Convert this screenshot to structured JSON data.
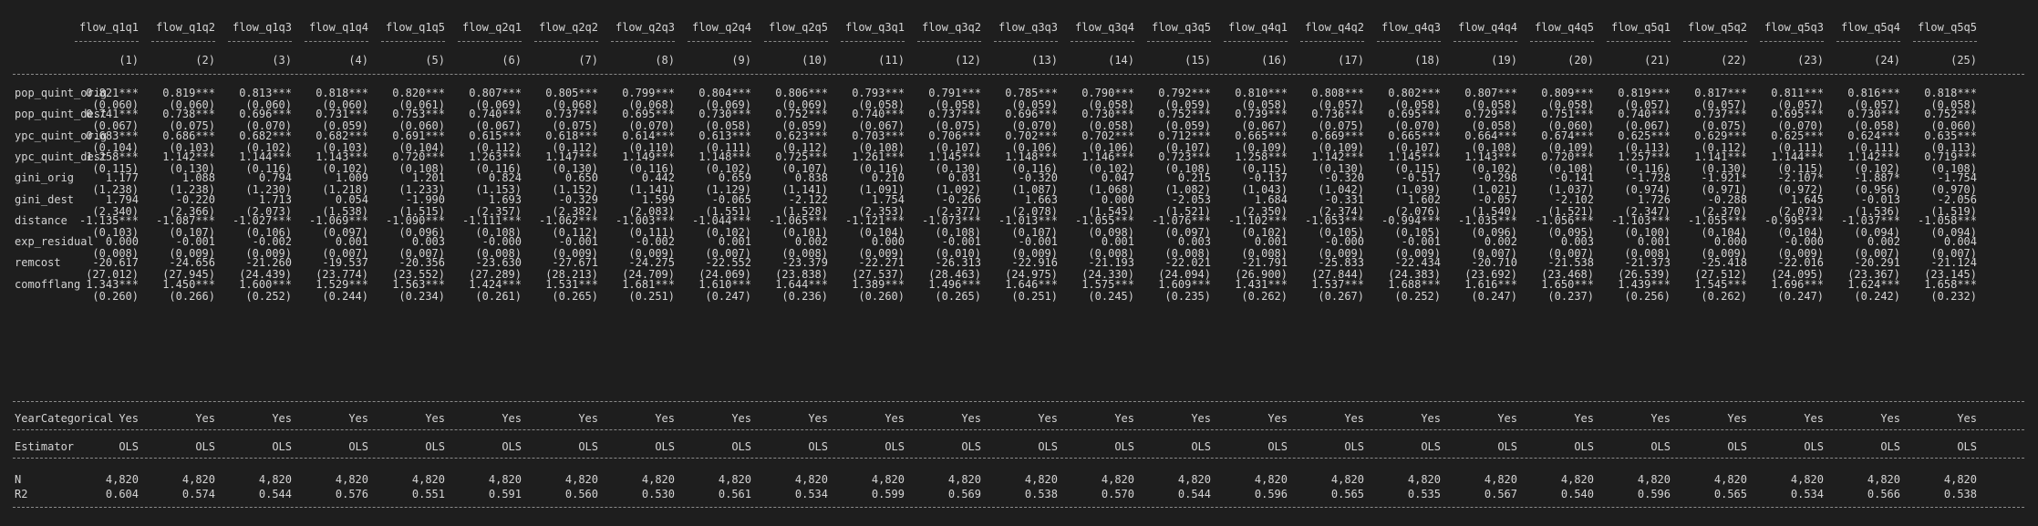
{
  "columns": [
    {
      "name": "flow_q1q1",
      "num": "(1)"
    },
    {
      "name": "flow_q1q2",
      "num": "(2)"
    },
    {
      "name": "flow_q1q3",
      "num": "(3)"
    },
    {
      "name": "flow_q1q4",
      "num": "(4)"
    },
    {
      "name": "flow_q1q5",
      "num": "(5)"
    },
    {
      "name": "flow_q2q1",
      "num": "(6)"
    },
    {
      "name": "flow_q2q2",
      "num": "(7)"
    },
    {
      "name": "flow_q2q3",
      "num": "(8)"
    },
    {
      "name": "flow_q2q4",
      "num": "(9)"
    },
    {
      "name": "flow_q2q5",
      "num": "(10)"
    },
    {
      "name": "flow_q3q1",
      "num": "(11)"
    },
    {
      "name": "flow_q3q2",
      "num": "(12)"
    },
    {
      "name": "flow_q3q3",
      "num": "(13)"
    },
    {
      "name": "flow_q3q4",
      "num": "(14)"
    },
    {
      "name": "flow_q3q5",
      "num": "(15)"
    },
    {
      "name": "flow_q4q1",
      "num": "(16)"
    },
    {
      "name": "flow_q4q2",
      "num": "(17)"
    },
    {
      "name": "flow_q4q3",
      "num": "(18)"
    },
    {
      "name": "flow_q4q4",
      "num": "(19)"
    },
    {
      "name": "flow_q4q5",
      "num": "(20)"
    },
    {
      "name": "flow_q5q1",
      "num": "(21)"
    },
    {
      "name": "flow_q5q2",
      "num": "(22)"
    },
    {
      "name": "flow_q5q3",
      "num": "(23)"
    },
    {
      "name": "flow_q5q4",
      "num": "(24)"
    },
    {
      "name": "flow_q5q5",
      "num": "(25)"
    }
  ],
  "coef_rows": [
    {
      "label": "pop_quint_orig",
      "coef": [
        "0.821***",
        "0.819***",
        "0.813***",
        "0.818***",
        "0.820***",
        "0.807***",
        "0.805***",
        "0.799***",
        "0.804***",
        "0.806***",
        "0.793***",
        "0.791***",
        "0.785***",
        "0.790***",
        "0.792***",
        "0.810***",
        "0.808***",
        "0.802***",
        "0.807***",
        "0.809***",
        "0.819***",
        "0.817***",
        "0.811***",
        "0.816***",
        "0.818***"
      ],
      "se": [
        "(0.060)",
        "(0.060)",
        "(0.060)",
        "(0.060)",
        "(0.061)",
        "(0.069)",
        "(0.068)",
        "(0.068)",
        "(0.069)",
        "(0.069)",
        "(0.058)",
        "(0.058)",
        "(0.059)",
        "(0.058)",
        "(0.059)",
        "(0.058)",
        "(0.057)",
        "(0.058)",
        "(0.058)",
        "(0.058)",
        "(0.057)",
        "(0.057)",
        "(0.057)",
        "(0.057)",
        "(0.058)"
      ]
    },
    {
      "label": "pop_quint_dest",
      "coef": [
        "0.741***",
        "0.738***",
        "0.696***",
        "0.731***",
        "0.753***",
        "0.740***",
        "0.737***",
        "0.695***",
        "0.730***",
        "0.752***",
        "0.740***",
        "0.737***",
        "0.696***",
        "0.730***",
        "0.752***",
        "0.739***",
        "0.736***",
        "0.695***",
        "0.729***",
        "0.751***",
        "0.740***",
        "0.737***",
        "0.695***",
        "0.730***",
        "0.752***"
      ],
      "se": [
        "(0.067)",
        "(0.075)",
        "(0.070)",
        "(0.059)",
        "(0.060)",
        "(0.067)",
        "(0.075)",
        "(0.070)",
        "(0.058)",
        "(0.059)",
        "(0.067)",
        "(0.075)",
        "(0.070)",
        "(0.058)",
        "(0.059)",
        "(0.067)",
        "(0.075)",
        "(0.070)",
        "(0.058)",
        "(0.060)",
        "(0.067)",
        "(0.075)",
        "(0.070)",
        "(0.058)",
        "(0.060)"
      ]
    },
    {
      "label": "ypc_quint_orig",
      "coef": [
        "0.683***",
        "0.686***",
        "0.682***",
        "0.682***",
        "0.691***",
        "0.615***",
        "0.618***",
        "0.614***",
        "0.613***",
        "0.623***",
        "0.703***",
        "0.706***",
        "0.702***",
        "0.702***",
        "0.712***",
        "0.665***",
        "0.669***",
        "0.665***",
        "0.664***",
        "0.674***",
        "0.625***",
        "0.629***",
        "0.625***",
        "0.624***",
        "0.635***"
      ],
      "se": [
        "(0.104)",
        "(0.103)",
        "(0.102)",
        "(0.103)",
        "(0.104)",
        "(0.112)",
        "(0.112)",
        "(0.110)",
        "(0.111)",
        "(0.112)",
        "(0.108)",
        "(0.107)",
        "(0.106)",
        "(0.106)",
        "(0.107)",
        "(0.109)",
        "(0.109)",
        "(0.107)",
        "(0.108)",
        "(0.109)",
        "(0.113)",
        "(0.112)",
        "(0.111)",
        "(0.111)",
        "(0.113)"
      ]
    },
    {
      "label": "ypc_quint_dest",
      "coef": [
        "1.258***",
        "1.142***",
        "1.144***",
        "1.143***",
        "0.720***",
        "1.263***",
        "1.147***",
        "1.149***",
        "1.148***",
        "0.725***",
        "1.261***",
        "1.145***",
        "1.148***",
        "1.146***",
        "0.723***",
        "1.258***",
        "1.142***",
        "1.145***",
        "1.143***",
        "0.720***",
        "1.257***",
        "1.141***",
        "1.144***",
        "1.142***",
        "0.719***"
      ],
      "se": [
        "(0.115)",
        "(0.130)",
        "(0.116)",
        "(0.102)",
        "(0.108)",
        "(0.116)",
        "(0.130)",
        "(0.116)",
        "(0.102)",
        "(0.107)",
        "(0.116)",
        "(0.130)",
        "(0.116)",
        "(0.102)",
        "(0.108)",
        "(0.115)",
        "(0.130)",
        "(0.115)",
        "(0.102)",
        "(0.108)",
        "(0.116)",
        "(0.130)",
        "(0.115)",
        "(0.102)",
        "(0.108)"
      ]
    },
    {
      "label": "gini_orig",
      "coef": [
        "1.177",
        "1.088",
        "0.794",
        "1.009",
        "1.201",
        "0.824",
        "0.650",
        "0.442",
        "0.659",
        "0.838",
        "0.210",
        "0.031",
        "-0.320",
        "0.047",
        "0.215",
        "-0.137",
        "-0.320",
        "-0.517",
        "-0.298",
        "-0.141",
        "-1.728",
        "-1.921*",
        "-2.107*",
        "-1.887*",
        "-1.754"
      ],
      "se": [
        "(1.238)",
        "(1.238)",
        "(1.230)",
        "(1.218)",
        "(1.233)",
        "(1.153)",
        "(1.152)",
        "(1.141)",
        "(1.129)",
        "(1.141)",
        "(1.091)",
        "(1.092)",
        "(1.087)",
        "(1.068)",
        "(1.082)",
        "(1.043)",
        "(1.042)",
        "(1.039)",
        "(1.021)",
        "(1.037)",
        "(0.974)",
        "(0.971)",
        "(0.972)",
        "(0.956)",
        "(0.970)"
      ]
    },
    {
      "label": "gini_dest",
      "coef": [
        "1.794",
        "-0.220",
        "1.713",
        "0.054",
        "-1.990",
        "1.693",
        "-0.329",
        "1.599",
        "-0.065",
        "-2.122",
        "1.754",
        "-0.266",
        "1.663",
        "0.000",
        "-2.053",
        "1.684",
        "-0.331",
        "1.602",
        "-0.057",
        "-2.102",
        "1.726",
        "-0.288",
        "1.645",
        "-0.013",
        "-2.056"
      ],
      "se": [
        "(2.340)",
        "(2.366)",
        "(2.073)",
        "(1.538)",
        "(1.515)",
        "(2.357)",
        "(2.382)",
        "(2.083)",
        "(1.551)",
        "(1.528)",
        "(2.353)",
        "(2.377)",
        "(2.078)",
        "(1.545)",
        "(1.521)",
        "(2.350)",
        "(2.374)",
        "(2.076)",
        "(1.540)",
        "(1.521)",
        "(2.347)",
        "(2.370)",
        "(2.073)",
        "(1.536)",
        "(1.519)"
      ]
    },
    {
      "label": "distance",
      "coef": [
        "-1.135***",
        "-1.087***",
        "-1.027***",
        "-1.069***",
        "-1.090***",
        "-1.111***",
        "-1.062***",
        "-1.003***",
        "-1.044***",
        "-1.065***",
        "-1.121***",
        "-1.073***",
        "-1.013***",
        "-1.055***",
        "-1.076***",
        "-1.102***",
        "-1.053***",
        "-0.994***",
        "-1.035***",
        "-1.056***",
        "-1.103***",
        "-1.055***",
        "-0.995***",
        "-1.037***",
        "-1.058***"
      ],
      "se": [
        "(0.103)",
        "(0.107)",
        "(0.106)",
        "(0.097)",
        "(0.096)",
        "(0.108)",
        "(0.112)",
        "(0.111)",
        "(0.102)",
        "(0.101)",
        "(0.104)",
        "(0.108)",
        "(0.107)",
        "(0.098)",
        "(0.097)",
        "(0.102)",
        "(0.105)",
        "(0.105)",
        "(0.096)",
        "(0.095)",
        "(0.100)",
        "(0.104)",
        "(0.104)",
        "(0.094)",
        "(0.094)"
      ]
    },
    {
      "label": "exp_residual",
      "coef": [
        "0.000",
        "-0.001",
        "-0.002",
        "0.001",
        "0.003",
        "-0.000",
        "-0.001",
        "-0.002",
        "0.001",
        "0.002",
        "0.000",
        "-0.001",
        "-0.001",
        "0.001",
        "0.003",
        "0.001",
        "-0.000",
        "-0.001",
        "0.002",
        "0.003",
        "0.001",
        "0.000",
        "-0.000",
        "0.002",
        "0.004"
      ],
      "se": [
        "(0.008)",
        "(0.009)",
        "(0.009)",
        "(0.007)",
        "(0.007)",
        "(0.008)",
        "(0.009)",
        "(0.009)",
        "(0.007)",
        "(0.008)",
        "(0.009)",
        "(0.010)",
        "(0.009)",
        "(0.008)",
        "(0.008)",
        "(0.008)",
        "(0.009)",
        "(0.009)",
        "(0.007)",
        "(0.007)",
        "(0.008)",
        "(0.009)",
        "(0.009)",
        "(0.007)",
        "(0.007)"
      ]
    },
    {
      "label": "remcost",
      "coef": [
        "-20.617",
        "-24.656",
        "-21.260",
        "-19.537",
        "-20.356",
        "-23.630",
        "-27.671",
        "-24.275",
        "-22.552",
        "-23.379",
        "-22.271",
        "-26.313",
        "-22.916",
        "-21.193",
        "-22.021",
        "-21.791",
        "-25.833",
        "-22.434",
        "-20.710",
        "-21.538",
        "-21.373",
        "-25.418",
        "-22.016",
        "-20.291",
        "-21.124"
      ],
      "se": [
        "(27.012)",
        "(27.945)",
        "(24.439)",
        "(23.774)",
        "(23.552)",
        "(27.289)",
        "(28.213)",
        "(24.709)",
        "(24.069)",
        "(23.838)",
        "(27.537)",
        "(28.463)",
        "(24.975)",
        "(24.330)",
        "(24.094)",
        "(26.900)",
        "(27.844)",
        "(24.383)",
        "(23.692)",
        "(23.468)",
        "(26.539)",
        "(27.512)",
        "(24.095)",
        "(23.367)",
        "(23.145)"
      ]
    },
    {
      "label": "comofflang",
      "coef": [
        "1.343***",
        "1.450***",
        "1.600***",
        "1.529***",
        "1.563***",
        "1.424***",
        "1.531***",
        "1.681***",
        "1.610***",
        "1.644***",
        "1.389***",
        "1.496***",
        "1.646***",
        "1.575***",
        "1.609***",
        "1.431***",
        "1.537***",
        "1.688***",
        "1.616***",
        "1.650***",
        "1.439***",
        "1.545***",
        "1.696***",
        "1.624***",
        "1.658***"
      ],
      "se": [
        "(0.260)",
        "(0.266)",
        "(0.252)",
        "(0.244)",
        "(0.234)",
        "(0.261)",
        "(0.265)",
        "(0.251)",
        "(0.247)",
        "(0.236)",
        "(0.260)",
        "(0.265)",
        "(0.251)",
        "(0.245)",
        "(0.235)",
        "(0.262)",
        "(0.267)",
        "(0.252)",
        "(0.247)",
        "(0.237)",
        "(0.256)",
        "(0.262)",
        "(0.247)",
        "(0.242)",
        "(0.232)"
      ]
    }
  ],
  "fe_row": {
    "label": "YearCategorical",
    "value": "Yes"
  },
  "estimator_row": {
    "label": "Estimator",
    "value": "OLS"
  },
  "stat_rows": [
    {
      "label": "N",
      "values": [
        "4,820",
        "4,820",
        "4,820",
        "4,820",
        "4,820",
        "4,820",
        "4,820",
        "4,820",
        "4,820",
        "4,820",
        "4,820",
        "4,820",
        "4,820",
        "4,820",
        "4,820",
        "4,820",
        "4,820",
        "4,820",
        "4,820",
        "4,820",
        "4,820",
        "4,820",
        "4,820",
        "4,820",
        "4,820"
      ]
    },
    {
      "label": "R2",
      "values": [
        "0.604",
        "0.574",
        "0.544",
        "0.576",
        "0.551",
        "0.591",
        "0.560",
        "0.530",
        "0.561",
        "0.534",
        "0.599",
        "0.569",
        "0.538",
        "0.570",
        "0.544",
        "0.596",
        "0.565",
        "0.535",
        "0.567",
        "0.540",
        "0.596",
        "0.565",
        "0.534",
        "0.566",
        "0.538"
      ]
    }
  ]
}
